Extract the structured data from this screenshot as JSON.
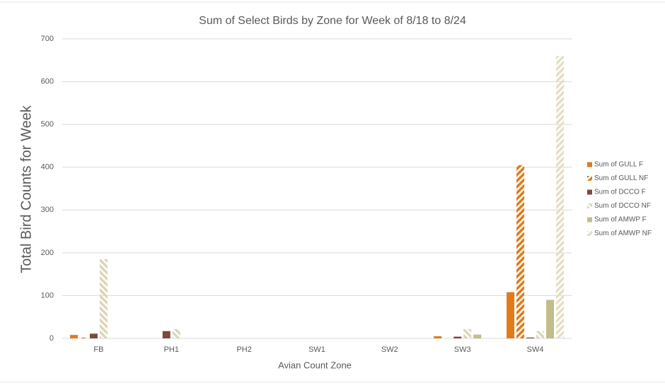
{
  "chart_data": {
    "type": "bar",
    "title": "Sum of Select Birds by Zone for Week of 8/18 to 8/24",
    "x_label": "Avian Count Zone",
    "y_label": "Total Bird Counts for Week",
    "categories": [
      "FB",
      "PH1",
      "PH2",
      "SW1",
      "SW2",
      "SW3",
      "SW4"
    ],
    "series": [
      {
        "name": "Sum of GULL F",
        "color": "#e07b1a",
        "pattern": "solid",
        "values": [
          8,
          0,
          0,
          0,
          0,
          5,
          108
        ]
      },
      {
        "name": "Sum of GULL NF",
        "color": "#e07b1a",
        "pattern": "forward",
        "values": [
          2,
          0,
          0,
          0,
          0,
          0,
          405
        ]
      },
      {
        "name": "Sum of DCCO F",
        "color": "#7b4a3a",
        "pattern": "solid",
        "values": [
          11,
          17,
          0,
          0,
          0,
          4,
          2
        ]
      },
      {
        "name": "Sum of DCCO NF",
        "color": "#dcd6b8",
        "pattern": "back",
        "values": [
          185,
          22,
          0,
          0,
          0,
          22,
          17
        ]
      },
      {
        "name": "Sum of AMWP F",
        "color": "#c2bd8a",
        "pattern": "solid",
        "values": [
          0,
          0,
          0,
          0,
          0,
          9,
          90
        ]
      },
      {
        "name": "Sum of AMWP NF",
        "color": "#e4dfc4",
        "pattern": "forward",
        "values": [
          0,
          0,
          0,
          0,
          0,
          0,
          660
        ]
      }
    ],
    "ylim": [
      0,
      700
    ],
    "yticks": [
      0,
      100,
      200,
      300,
      400,
      500,
      600,
      700
    ],
    "grid": true
  }
}
